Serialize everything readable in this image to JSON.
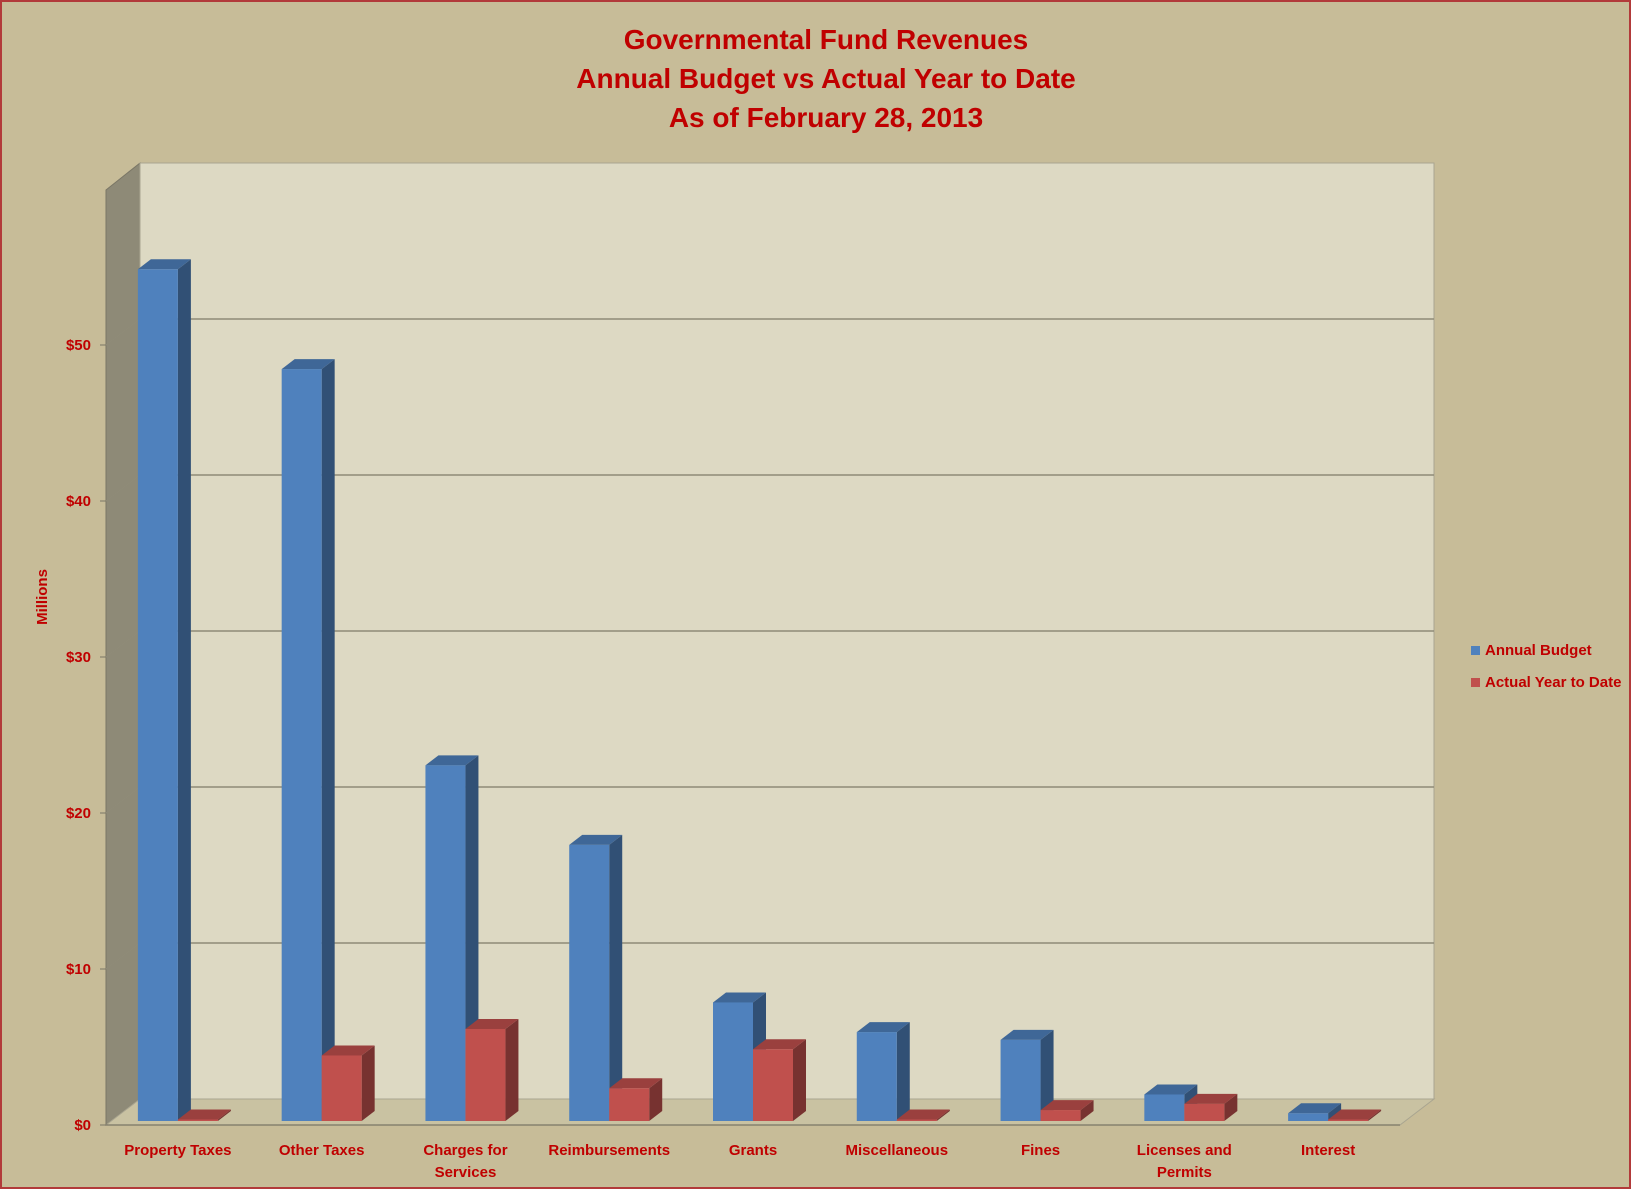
{
  "chart_data": {
    "type": "bar",
    "title_lines": [
      "Governmental Fund Revenues",
      "Annual Budget vs Actual Year to Date",
      "As of February 28, 2013"
    ],
    "xlabel": "",
    "ylabel": "Millions",
    "ylim": [
      0,
      60
    ],
    "yticks": [
      {
        "value": 0,
        "label": "$0"
      },
      {
        "value": 10,
        "label": "$10"
      },
      {
        "value": 20,
        "label": "$20"
      },
      {
        "value": 30,
        "label": "$30"
      },
      {
        "value": 40,
        "label": "$40"
      },
      {
        "value": 50,
        "label": "$50"
      }
    ],
    "categories": [
      [
        "Property Taxes"
      ],
      [
        "Other Taxes"
      ],
      [
        "Charges for",
        "Services"
      ],
      [
        "Reimbursements"
      ],
      [
        "Grants"
      ],
      [
        "Miscellaneous"
      ],
      [
        "Fines"
      ],
      [
        "Licenses and",
        "Permits"
      ],
      [
        "Interest"
      ]
    ],
    "series": [
      {
        "name": "Annual Budget",
        "color": "#4f81bd",
        "values": [
          54.6,
          48.2,
          22.8,
          17.7,
          7.6,
          5.7,
          5.2,
          1.7,
          0.5
        ]
      },
      {
        "name": "Actual Year to Date",
        "color": "#c0504d",
        "values": [
          0.05,
          4.2,
          5.9,
          2.1,
          4.6,
          0.05,
          0.7,
          1.1,
          0.05
        ]
      }
    ],
    "grid": true,
    "legend_position": "right",
    "colors": {
      "text": "#c00000",
      "wall": "#ddd9c3",
      "background": "#c7bc98",
      "side_wall": "#8e8a77"
    }
  }
}
